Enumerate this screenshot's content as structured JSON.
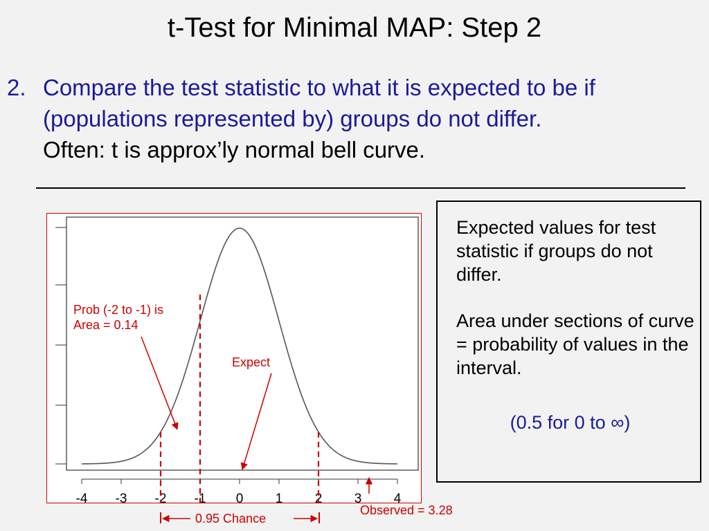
{
  "slide": {
    "title": "t-Test for Minimal MAP: Step 2",
    "point_number": "2.",
    "point_text": "Compare the test statistic to what it is expected to be if (populations represented by) groups do not differ.",
    "point_subtext": "Often: t is approx’ly normal bell curve."
  },
  "callout": {
    "para1": "Expected values for test statistic if groups do not differ.",
    "para2": "Area under sections of curve = probability of values in the interval.",
    "para3": "(0.5 for 0 to ∞)"
  },
  "annotations": {
    "prob_line1": "Prob (-2 to -1) is",
    "prob_line2": "Area = 0.14",
    "expect": "Expect",
    "chance": "0.95 Chance",
    "observed": "Observed = 3.28"
  },
  "colors": {
    "annotation_red": "#cc0000",
    "body_blue": "#1a1a99",
    "curve_gray": "#555555"
  },
  "chart_data": {
    "type": "line",
    "curve": "standard normal density",
    "xlim": [
      -4,
      4
    ],
    "x_ticks": [
      "-4",
      "-3",
      "-2",
      "-1",
      "0",
      "1",
      "2",
      "3",
      "4"
    ],
    "x_tick_values": [
      -4,
      -3,
      -2,
      -1,
      0,
      1,
      2,
      3,
      4
    ],
    "markers": [
      {
        "name": "lower-95",
        "x": -2
      },
      {
        "name": "prob-boundary",
        "x": -1
      },
      {
        "name": "upper-95",
        "x": 2
      }
    ],
    "observed_x": 3.28,
    "expected_x": 0,
    "title": "",
    "xlabel": "",
    "ylabel": ""
  }
}
